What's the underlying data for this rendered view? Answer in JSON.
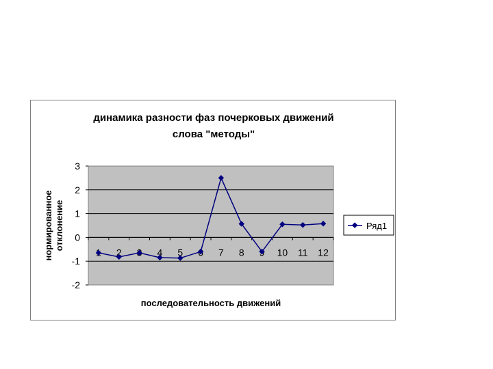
{
  "chart_data": {
    "type": "line",
    "title": [
      "динамика разности фаз почерковых движений",
      "слова \"методы\""
    ],
    "xlabel": "последовательность движений",
    "ylabel": [
      "нормированное",
      "отклонение"
    ],
    "categories": [
      "1",
      "2",
      "3",
      "4",
      "5",
      "6",
      "7",
      "8",
      "9",
      "10",
      "11",
      "12"
    ],
    "series": [
      {
        "name": "Ряд1",
        "values": [
          -0.65,
          -0.82,
          -0.65,
          -0.85,
          -0.87,
          -0.6,
          2.5,
          0.57,
          -0.6,
          0.55,
          0.52,
          0.58
        ]
      }
    ],
    "ylim": [
      -2,
      3
    ],
    "yticks": [
      "3",
      "2",
      "1",
      "0",
      "-1",
      "-2"
    ],
    "grid": true,
    "legend": "right",
    "colors": {
      "series": "#000080",
      "plot_area": "#c0c0c0",
      "grid": "#000000"
    }
  }
}
